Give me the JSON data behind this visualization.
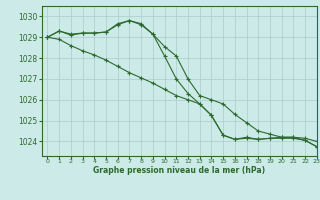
{
  "title": "Graphe pression niveau de la mer (hPa)",
  "background_color": "#cceae7",
  "grid_color": "#aacccc",
  "line_color": "#2d6a2d",
  "xlim": [
    -0.5,
    23
  ],
  "ylim": [
    1023.3,
    1030.5
  ],
  "yticks": [
    1024,
    1025,
    1026,
    1027,
    1028,
    1029,
    1030
  ],
  "xticks": [
    0,
    1,
    2,
    3,
    4,
    5,
    6,
    7,
    8,
    9,
    10,
    11,
    12,
    13,
    14,
    15,
    16,
    17,
    18,
    19,
    20,
    21,
    22,
    23
  ],
  "series1": {
    "x": [
      0,
      1,
      2,
      3,
      4,
      5,
      6,
      7,
      8,
      9,
      10,
      11,
      12,
      13,
      14,
      15,
      16,
      17,
      18,
      19,
      20,
      21,
      22,
      23
    ],
    "y": [
      1029.0,
      1029.3,
      1029.15,
      1029.2,
      1029.2,
      1029.25,
      1029.65,
      1029.8,
      1029.65,
      1029.15,
      1028.55,
      1028.1,
      1027.0,
      1026.2,
      1026.0,
      1025.8,
      1025.3,
      1024.9,
      1024.5,
      1024.35,
      1024.2,
      1024.2,
      1024.15,
      1024.0
    ]
  },
  "series2": {
    "x": [
      0,
      1,
      2,
      3,
      4,
      5,
      6,
      7,
      8,
      9,
      10,
      11,
      12,
      13,
      14,
      15,
      16,
      17,
      18,
      19,
      20,
      21,
      22,
      23
    ],
    "y": [
      1029.0,
      1029.3,
      1029.1,
      1029.2,
      1029.2,
      1029.25,
      1029.6,
      1029.8,
      1029.6,
      1029.15,
      1028.1,
      1027.0,
      1026.3,
      1025.8,
      1025.25,
      1024.3,
      1024.1,
      1024.2,
      1024.1,
      1024.15,
      1024.2,
      1024.2,
      1024.05,
      1023.75
    ]
  },
  "series3": {
    "x": [
      0,
      1,
      2,
      3,
      4,
      5,
      6,
      7,
      8,
      9,
      10,
      11,
      12,
      13,
      14,
      15,
      16,
      17,
      18,
      19,
      20,
      21,
      22,
      23
    ],
    "y": [
      1029.0,
      1028.9,
      1028.6,
      1028.35,
      1028.15,
      1027.9,
      1027.6,
      1027.3,
      1027.05,
      1026.8,
      1026.5,
      1026.2,
      1026.0,
      1025.8,
      1025.25,
      1024.3,
      1024.1,
      1024.15,
      1024.1,
      1024.15,
      1024.15,
      1024.15,
      1024.05,
      1023.75
    ]
  }
}
